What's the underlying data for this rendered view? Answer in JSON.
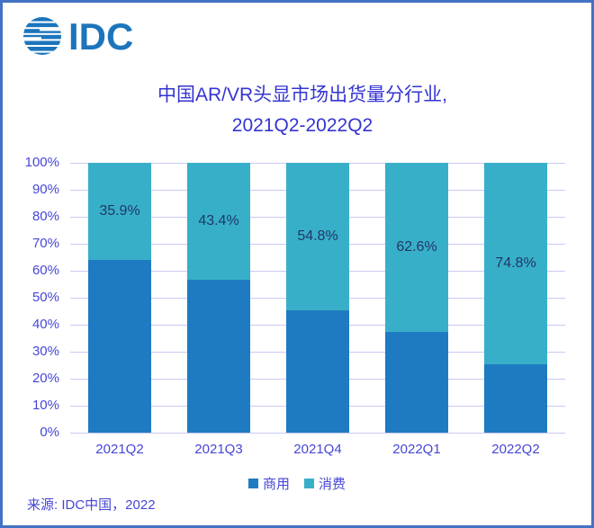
{
  "frame": {
    "border_color": "#4472C4",
    "background_color": "#FFFFFF"
  },
  "logo": {
    "text": "IDC",
    "color": "#1C75BC",
    "icon": "striped-globe-icon"
  },
  "chart_data": {
    "type": "bar",
    "stacked": true,
    "percent_stacked": true,
    "title_line1": "中国AR/VR头显市场出货量分行业,",
    "title_line2": "2021Q2-2022Q2",
    "title_color": "#3434D0",
    "categories": [
      "2021Q2",
      "2021Q3",
      "2021Q4",
      "2022Q1",
      "2022Q2"
    ],
    "series": [
      {
        "name": "商用",
        "color": "#1F7BC1",
        "values": [
          64.1,
          56.6,
          45.2,
          37.4,
          25.2
        ]
      },
      {
        "name": "消费",
        "color": "#38AFC9",
        "values": [
          35.9,
          43.4,
          54.8,
          62.6,
          74.8
        ]
      }
    ],
    "data_labels": {
      "on_series": "消费",
      "values": [
        "35.9%",
        "43.4%",
        "54.8%",
        "62.6%",
        "74.8%"
      ],
      "color": "#1F3864"
    },
    "ylim": [
      0,
      100
    ],
    "y_ticks": [
      "100%",
      "90%",
      "80%",
      "70%",
      "60%",
      "50%",
      "40%",
      "30%",
      "20%",
      "10%",
      "0%"
    ],
    "grid": true,
    "gridline_color": "#C9C9F2",
    "axis_text_color": "#4646D6",
    "legend_position": "bottom"
  },
  "source": "来源: IDC中国，2022"
}
